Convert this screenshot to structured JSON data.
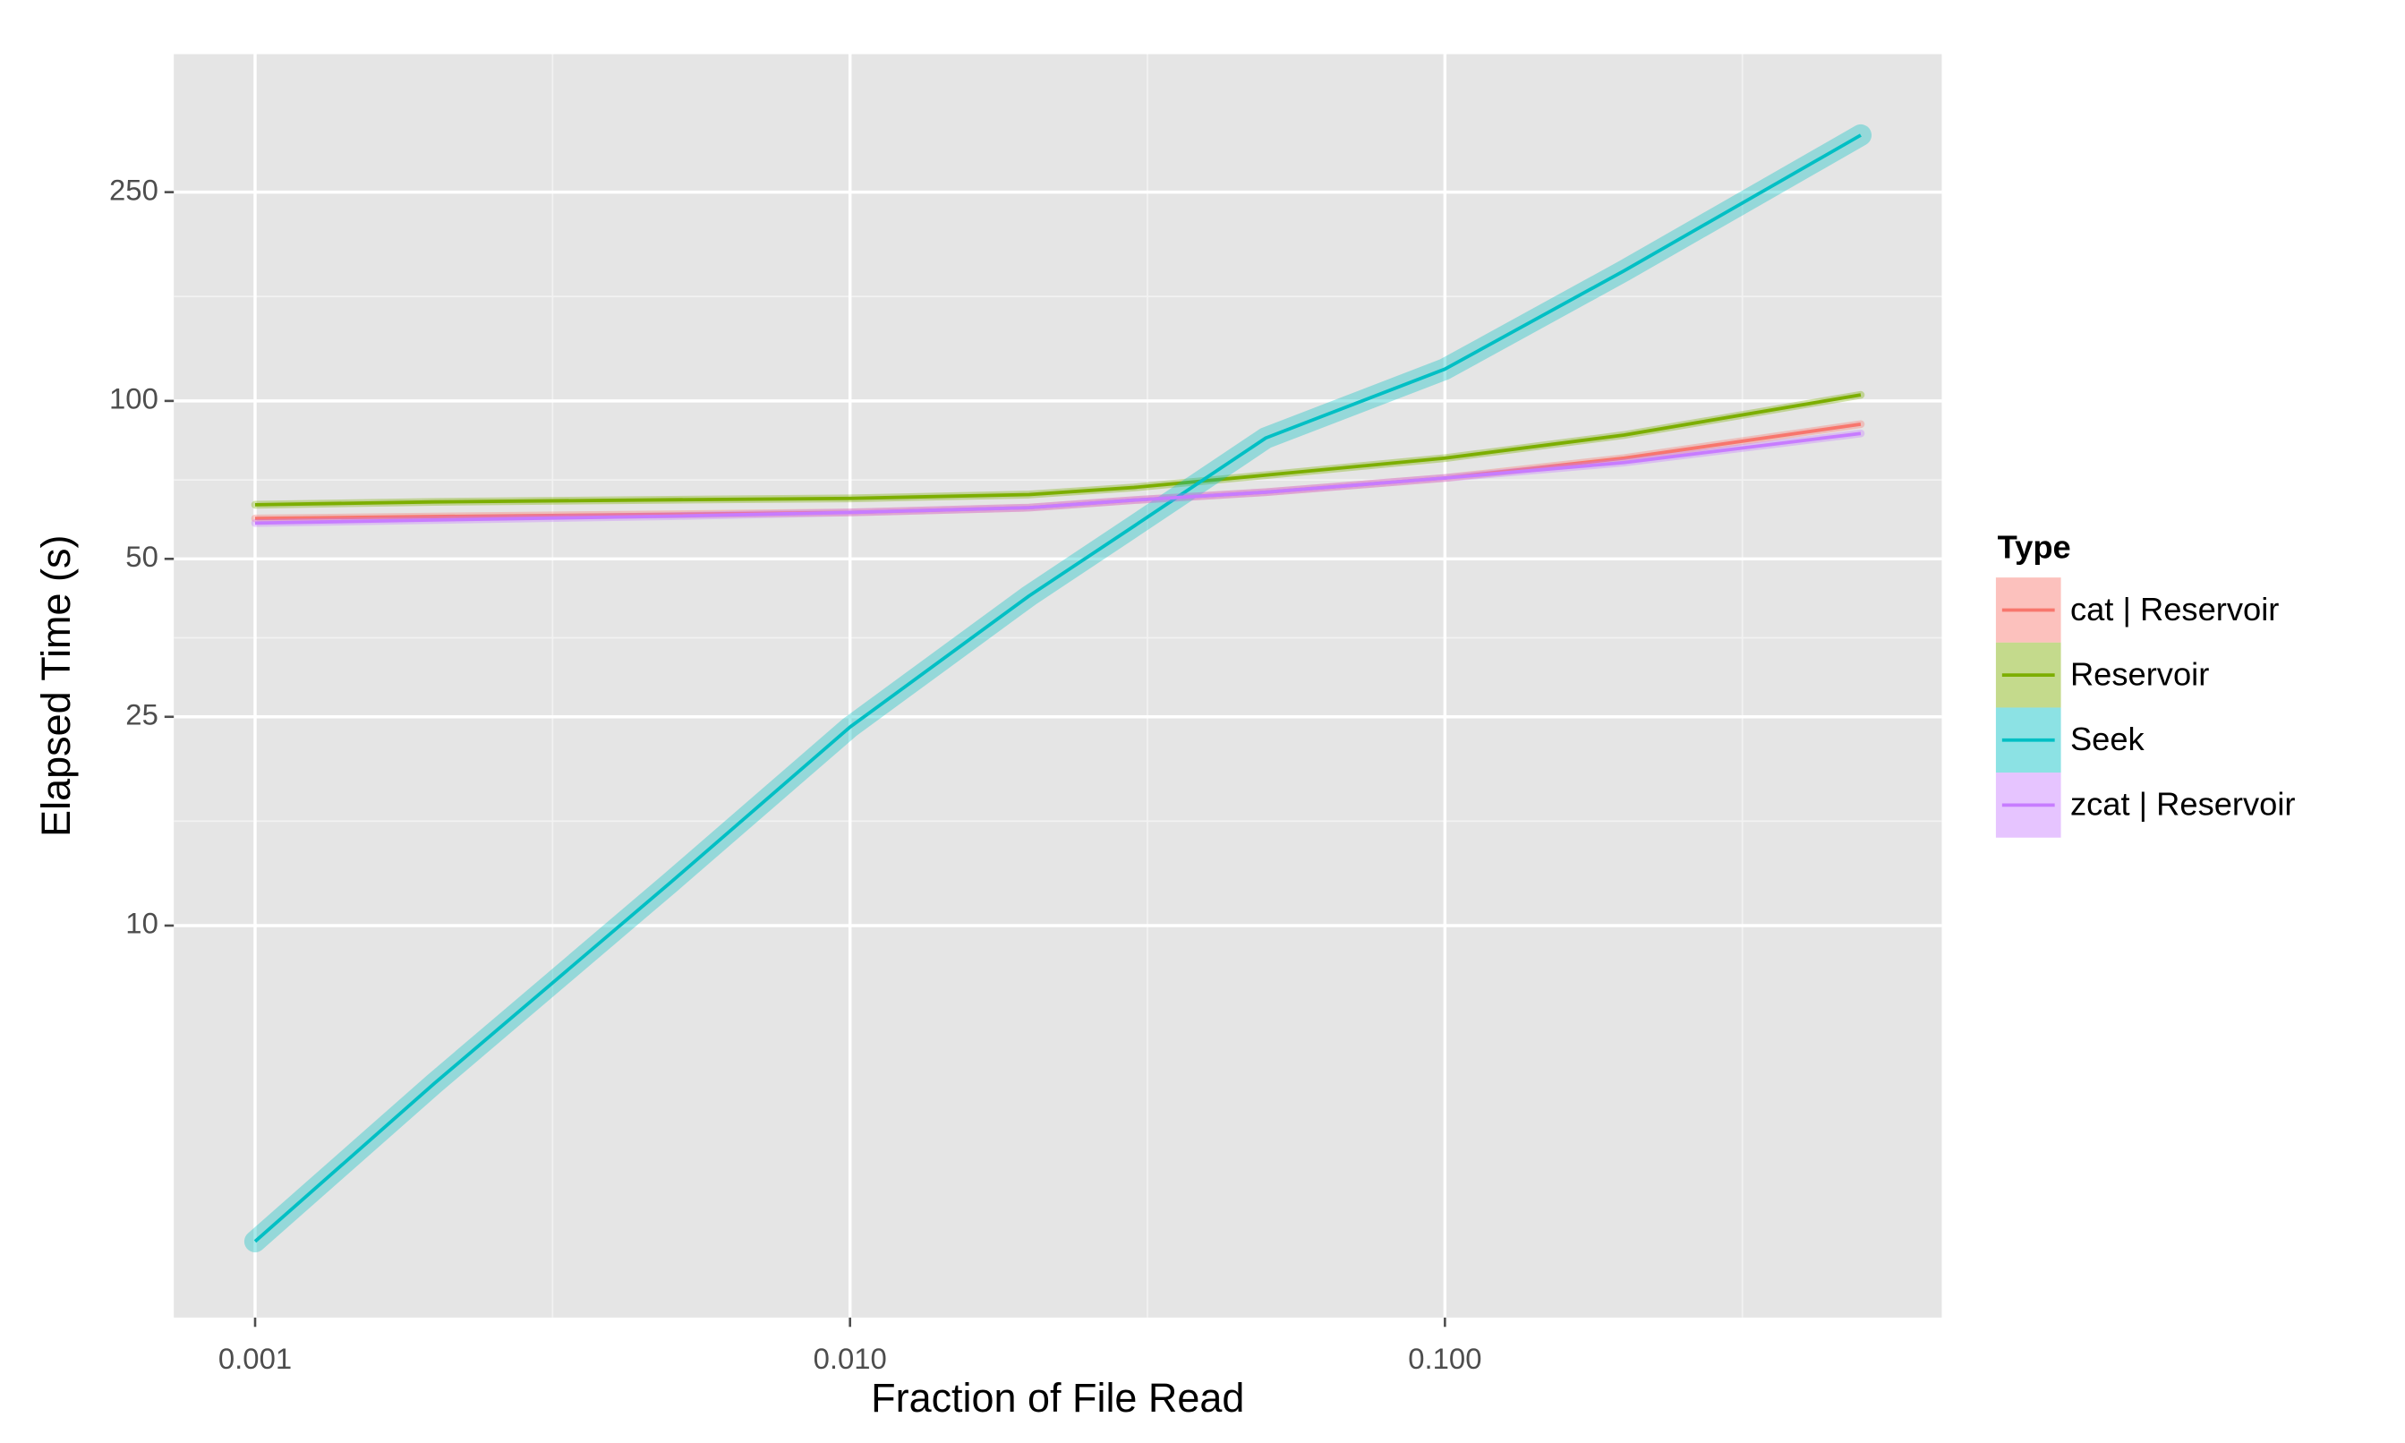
{
  "chart_data": {
    "type": "line",
    "x_label": "Fraction of File Read",
    "y_label": "Elapsed Time (s)",
    "x_scale": "log",
    "y_scale": "log",
    "grid": true,
    "legend_title": "Type",
    "legend_position": "right",
    "xlim": [
      0.00073,
      0.684
    ],
    "ylim": [
      1.79,
      458
    ],
    "xticks": [
      0.001,
      {
        "value": 0.01,
        "label": "0.010"
      },
      {
        "value": 0.1,
        "label": "0.100"
      }
    ],
    "yticks": [
      10,
      25,
      50,
      100,
      250
    ],
    "x": [
      0.001,
      0.002,
      0.005,
      0.01,
      0.02,
      0.03,
      0.05,
      0.1,
      0.2,
      0.5
    ],
    "series": [
      {
        "name": "cat | Reservoir",
        "color": "#F8766D",
        "values": [
          59.7,
          60.2,
          60.8,
          61.3,
          62.6,
          64.7,
          67,
          71.3,
          77.8,
          90.3
        ]
      },
      {
        "name": "Reservoir",
        "color": "#7CAE00",
        "values": [
          63.4,
          64.2,
          64.8,
          65.2,
          66.3,
          68.4,
          72.2,
          77.8,
          86.1,
          102.7
        ]
      },
      {
        "name": "Seek",
        "color": "#00BFC4",
        "values": [
          2.5,
          5.0,
          12.1,
          23.9,
          42.5,
          57.7,
          85,
          115,
          177,
          321
        ]
      },
      {
        "name": "zcat | Reservoir",
        "color": "#C77CFF",
        "values": [
          58.5,
          59.3,
          60.3,
          61.3,
          62.6,
          64.7,
          67,
          71.3,
          76.3,
          86.7
        ]
      }
    ]
  }
}
